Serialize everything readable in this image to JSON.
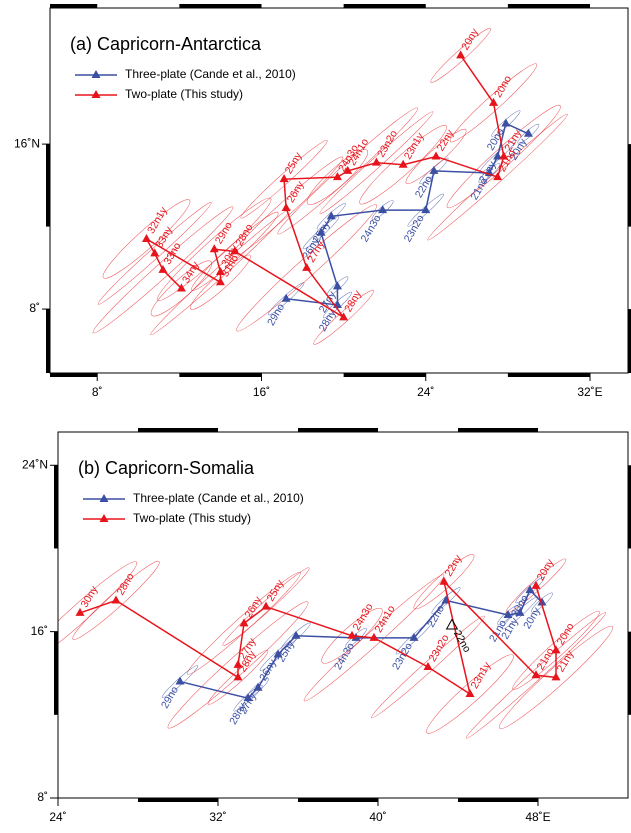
{
  "chart_data": [
    {
      "type": "line",
      "title": "(a) Capricorn-Antarctica",
      "xlim": [
        5.7,
        33.85
      ],
      "ylim": [
        4.9,
        22.6
      ],
      "xticks": [
        {
          "value": 8,
          "label": "8˚"
        },
        {
          "value": 16,
          "label": "16˚"
        },
        {
          "value": 24,
          "label": "24˚"
        },
        {
          "value": 32,
          "label": "32˚E"
        }
      ],
      "yticks": [
        {
          "value": 8,
          "label": "8˚"
        },
        {
          "value": 16,
          "label": "16˚N"
        }
      ],
      "legend": "upper left",
      "series": [
        {
          "name": "Three-plate (Cande et al., 2010)",
          "color": "#3b4fa3",
          "labels": [
            "20ny",
            "20no",
            "21ny",
            "21no",
            "22no",
            "23n2o",
            "24n3o",
            "25ny",
            "26ny",
            "27ny",
            "28ny",
            "29no"
          ],
          "x": [
            29.0,
            27.9,
            27.5,
            27.1,
            24.4,
            24.0,
            21.9,
            19.4,
            18.9,
            19.7,
            19.7,
            17.2
          ],
          "values": [
            16.5,
            17.0,
            15.4,
            14.6,
            14.7,
            12.8,
            12.8,
            12.5,
            11.7,
            9.1,
            8.2,
            8.5
          ]
        },
        {
          "name": "Two-plate (This study)",
          "color": "#e8141c",
          "labels": [
            "20ny",
            "20no",
            "21ny",
            "21no",
            "22ny",
            "23n1y",
            "23n2o",
            "24n1o",
            "24n3o",
            "25ny",
            "26ny",
            "27ny",
            "28ny",
            "28no",
            "29no",
            "30ny",
            "31no",
            "32n1y",
            "33ny",
            "33no",
            "34ny"
          ],
          "x": [
            25.7,
            27.3,
            27.8,
            27.5,
            24.5,
            22.9,
            21.6,
            20.2,
            19.7,
            17.1,
            17.2,
            18.2,
            20.0,
            14.7,
            13.7,
            14.0,
            14.0,
            10.4,
            10.8,
            11.2,
            12.1
          ],
          "values": [
            20.3,
            18.0,
            15.4,
            14.4,
            15.4,
            15.0,
            15.1,
            14.7,
            14.4,
            14.3,
            12.9,
            10.0,
            7.6,
            10.8,
            10.9,
            9.8,
            9.3,
            11.4,
            10.7,
            9.9,
            9.0
          ]
        }
      ]
    },
    {
      "type": "line",
      "title": "(b) Capricorn-Somalia",
      "xlim": [
        24,
        52.5
      ],
      "ylim": [
        8,
        25.6
      ],
      "xticks": [
        {
          "value": 24,
          "label": "24˚"
        },
        {
          "value": 32,
          "label": "32˚"
        },
        {
          "value": 40,
          "label": "40˚"
        },
        {
          "value": 48,
          "label": "48˚E"
        }
      ],
      "yticks": [
        {
          "value": 8,
          "label": "8˚"
        },
        {
          "value": 16,
          "label": "16˚"
        },
        {
          "value": 24,
          "label": "24˚N"
        }
      ],
      "legend": "upper left",
      "series": [
        {
          "name": "Three-plate (Cande et al., 2010)",
          "color": "#3b4fa3",
          "labels": [
            "20ny",
            "20no",
            "21ny",
            "21no",
            "22no",
            "23n2o",
            "24n3o",
            "25ny",
            "26ny",
            "27ny",
            "28ny",
            "29no"
          ],
          "x": [
            48.2,
            47.6,
            47.1,
            46.5,
            43.4,
            41.8,
            38.9,
            35.9,
            35.0,
            34.0,
            33.5,
            30.1
          ],
          "values": [
            17.4,
            18.0,
            16.9,
            16.8,
            17.5,
            15.7,
            15.7,
            15.8,
            14.9,
            13.3,
            12.8,
            13.6
          ]
        },
        {
          "name": "Two-plate (This study)",
          "color": "#e8141c",
          "labels": [
            "20ny",
            "20no",
            "21ny",
            "21no",
            "22ny",
            "23n1y",
            "23n2o",
            "24n1o",
            "24n3o",
            "25ny",
            "26ny",
            "27ny",
            "28ny",
            "28no",
            "30ny"
          ],
          "x": [
            47.9,
            48.9,
            48.9,
            47.9,
            43.3,
            44.6,
            42.5,
            39.8,
            38.7,
            34.4,
            33.3,
            33.0,
            33.0,
            26.9,
            25.1
          ],
          "values": [
            18.2,
            15.1,
            13.8,
            13.9,
            18.4,
            13.0,
            14.3,
            15.7,
            15.8,
            17.2,
            16.4,
            14.4,
            13.8,
            17.5,
            16.9
          ]
        }
      ],
      "annotations": [
        {
          "text": "22no",
          "x": 43.7,
          "y": 16.3
        }
      ]
    }
  ]
}
